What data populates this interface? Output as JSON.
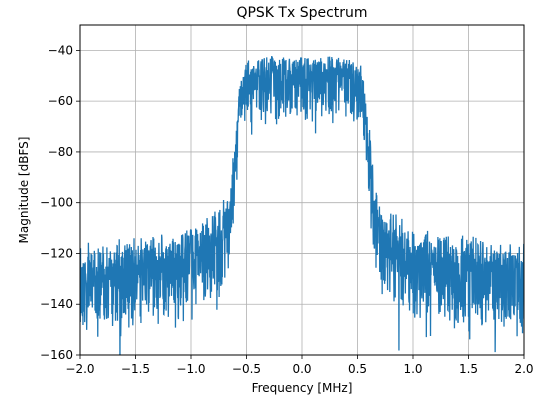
{
  "chart_data": {
    "type": "line",
    "title": "QPSK Tx Spectrum",
    "xlabel": "Frequency [MHz]",
    "ylabel": "Magnitude [dBFS]",
    "xlim": [
      -2.0,
      2.0
    ],
    "ylim": [
      -160,
      -30
    ],
    "xticks": [
      -2.0,
      -1.5,
      -1.0,
      -0.5,
      0.0,
      0.5,
      1.0,
      1.5,
      2.0
    ],
    "xtick_labels": [
      "−2.0",
      "−1.5",
      "−1.0",
      "−0.5",
      "0.0",
      "0.5",
      "1.0",
      "1.5",
      "2.0"
    ],
    "yticks": [
      -160,
      -140,
      -120,
      -100,
      -80,
      -60,
      -40
    ],
    "ytick_labels": [
      "−160",
      "−140",
      "−120",
      "−100",
      "−80",
      "−60",
      "−40"
    ],
    "grid": true,
    "line_color": "#1f77b4",
    "series": [
      {
        "description_free": true,
        "x": [
          -2.0,
          -1.9,
          -1.8,
          -1.7,
          -1.6,
          -1.5,
          -1.4,
          -1.3,
          -1.2,
          -1.1,
          -1.0,
          -0.9,
          -0.8,
          -0.7,
          -0.65,
          -0.6,
          -0.55,
          -0.5,
          -0.4,
          -0.3,
          -0.2,
          -0.1,
          0.0,
          0.1,
          0.2,
          0.3,
          0.4,
          0.5,
          0.55,
          0.6,
          0.65,
          0.7,
          0.8,
          0.9,
          1.0,
          1.1,
          1.2,
          1.3,
          1.4,
          1.5,
          1.6,
          1.7,
          1.8,
          1.9,
          2.0
        ],
        "y": [
          -125,
          -124,
          -124,
          -124,
          -123,
          -122,
          -122,
          -121,
          -121,
          -120,
          -118,
          -115,
          -112,
          -108,
          -100,
          -75,
          -50,
          -47,
          -46,
          -45,
          -45,
          -45,
          -45,
          -45,
          -45,
          -45,
          -46,
          -47,
          -50,
          -75,
          -100,
          -108,
          -112,
          -115,
          -118,
          -120,
          -121,
          -121,
          -122,
          -122,
          -123,
          -124,
          -124,
          -124,
          -125
        ]
      }
    ]
  }
}
